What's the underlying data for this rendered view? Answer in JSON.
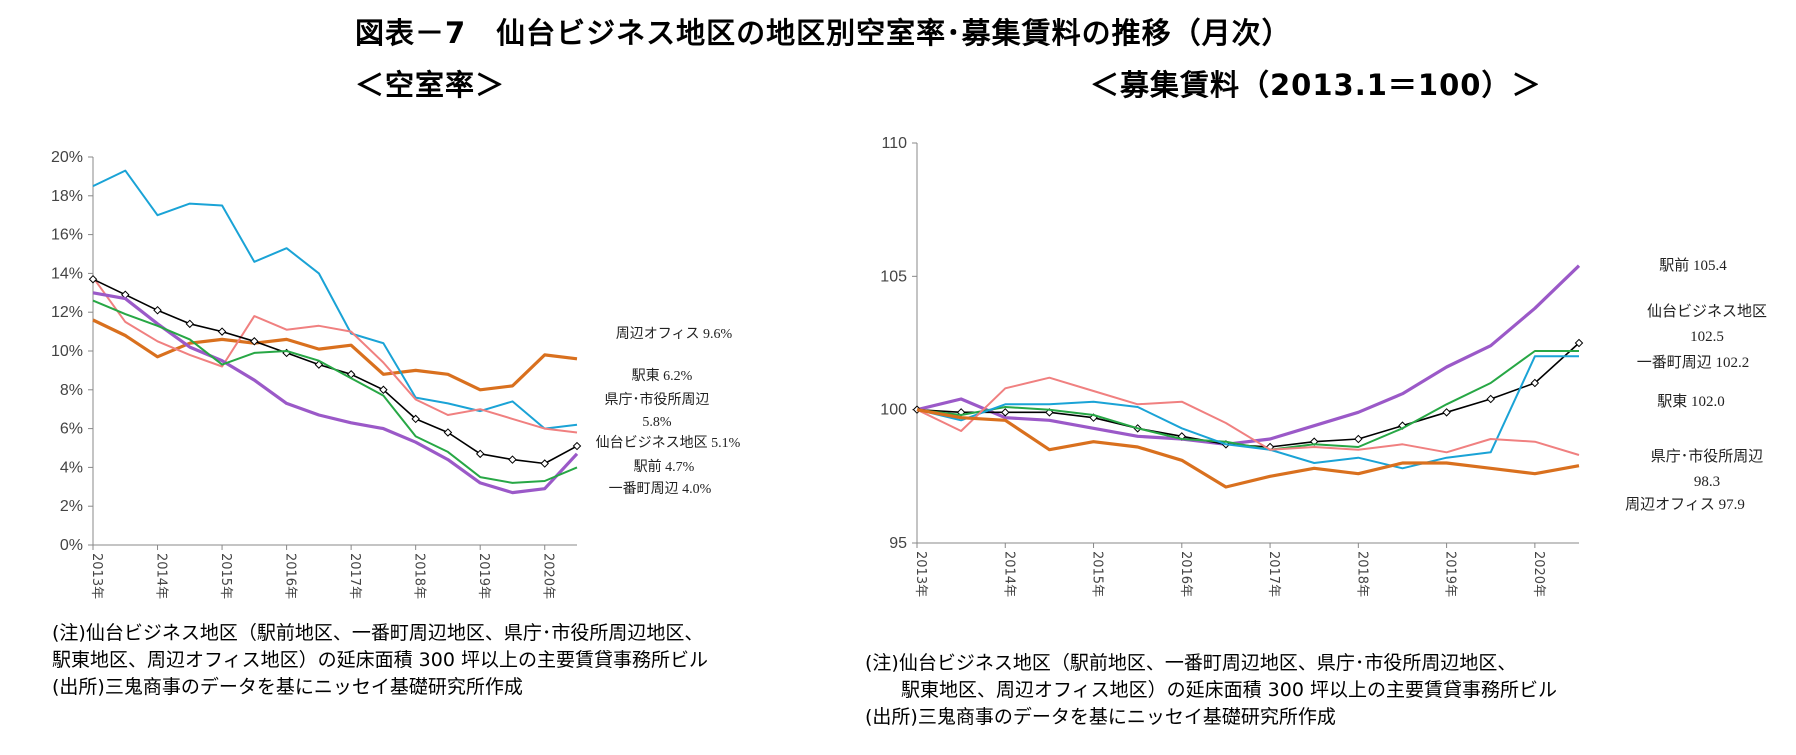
{
  "title": "図表－7　仙台ビジネス地区の地区別空室率･募集賃料の推移（月次）",
  "colors": {
    "sendai": "#000000",
    "ekimae": "#9b59c8",
    "ichibancho": "#27a745",
    "kencho": "#f08080",
    "ekihigashi": "#1aa3d6",
    "shuhen": "#d9701e"
  },
  "chart_data": [
    {
      "type": "line",
      "title": "＜空室率＞",
      "xlabel": "",
      "ylabel": "",
      "x_tick_labels": [
        "2013年",
        "2014年",
        "2015年",
        "2016年",
        "2017年",
        "2018年",
        "2019年",
        "2020年"
      ],
      "y_tick_labels": [
        "0%",
        "2%",
        "4%",
        "6%",
        "8%",
        "10%",
        "12%",
        "14%",
        "16%",
        "18%",
        "20%"
      ],
      "ylim": [
        0,
        20
      ],
      "xlim": [
        2013.0,
        2020.5
      ],
      "x": [
        2013.0,
        2013.5,
        2014.0,
        2014.5,
        2015.0,
        2015.5,
        2016.0,
        2016.5,
        2017.0,
        2017.5,
        2018.0,
        2018.5,
        2019.0,
        2019.5,
        2020.0,
        2020.5
      ],
      "series": [
        {
          "name": "周辺オフィス",
          "color_key": "shuhen",
          "last_label": "9.6%",
          "values": [
            11.6,
            10.8,
            9.7,
            10.4,
            10.6,
            10.4,
            10.6,
            10.1,
            10.3,
            8.8,
            9.0,
            8.8,
            8.0,
            8.2,
            9.8,
            9.6
          ]
        },
        {
          "name": "駅東",
          "color_key": "ekihigashi",
          "last_label": "6.2%",
          "values": [
            18.5,
            19.3,
            17.0,
            17.6,
            17.5,
            14.6,
            15.3,
            14.0,
            10.9,
            10.4,
            7.6,
            7.3,
            6.9,
            7.4,
            6.0,
            6.2
          ]
        },
        {
          "name": "県庁･市役所周辺",
          "color_key": "kencho",
          "last_label": "5.8%",
          "values": [
            13.8,
            11.5,
            10.5,
            9.8,
            9.2,
            11.8,
            11.1,
            11.3,
            11.0,
            9.4,
            7.5,
            6.7,
            7.0,
            6.5,
            6.0,
            5.8
          ]
        },
        {
          "name": "仙台ビジネス地区",
          "color_key": "sendai",
          "last_label": "5.1%",
          "marker": true,
          "values": [
            13.7,
            12.9,
            12.1,
            11.4,
            11.0,
            10.5,
            9.9,
            9.3,
            8.8,
            8.0,
            6.5,
            5.8,
            4.7,
            4.4,
            4.2,
            5.1
          ]
        },
        {
          "name": "駅前",
          "color_key": "ekimae",
          "last_label": "4.7%",
          "values": [
            13.0,
            12.7,
            11.4,
            10.2,
            9.5,
            8.5,
            7.3,
            6.7,
            6.3,
            6.0,
            5.3,
            4.4,
            3.2,
            2.7,
            2.9,
            4.7
          ]
        },
        {
          "name": "一番町周辺",
          "color_key": "ichibancho",
          "last_label": "4.0%",
          "values": [
            12.6,
            11.9,
            11.3,
            10.6,
            9.3,
            9.9,
            10.0,
            9.5,
            8.6,
            7.7,
            5.6,
            4.8,
            3.5,
            3.2,
            3.3,
            4.0
          ]
        }
      ],
      "labels": {
        "shuhen": "周辺オフィス 9.6%",
        "ekihigashi": "駅東 6.2%",
        "kencho_1": "県庁･市役所周辺",
        "kencho_2": "5.8%",
        "sendai": "仙台ビジネス地区 5.1%",
        "ekimae": "駅前 4.7%",
        "ichibancho": "一番町周辺 4.0%"
      }
    },
    {
      "type": "line",
      "title": "＜募集賃料（2013.1＝100）＞",
      "xlabel": "",
      "ylabel": "",
      "x_tick_labels": [
        "2013年",
        "2014年",
        "2015年",
        "2016年",
        "2017年",
        "2018年",
        "2019年",
        "2020年"
      ],
      "y_tick_labels": [
        "95",
        "100",
        "105",
        "110"
      ],
      "ylim": [
        95,
        110
      ],
      "xlim": [
        2013.0,
        2020.5
      ],
      "x": [
        2013.0,
        2013.5,
        2014.0,
        2014.5,
        2015.0,
        2015.5,
        2016.0,
        2016.5,
        2017.0,
        2017.5,
        2018.0,
        2018.5,
        2019.0,
        2019.5,
        2020.0,
        2020.5
      ],
      "series": [
        {
          "name": "駅前",
          "color_key": "ekimae",
          "last_label": "105.4",
          "values": [
            100.0,
            100.4,
            99.7,
            99.6,
            99.3,
            99.0,
            98.9,
            98.7,
            98.9,
            99.4,
            99.9,
            100.6,
            101.6,
            102.4,
            103.8,
            105.4
          ]
        },
        {
          "name": "仙台ビジネス地区",
          "color_key": "sendai",
          "last_label": "102.5",
          "marker": true,
          "values": [
            100.0,
            99.9,
            99.9,
            99.9,
            99.7,
            99.3,
            99.0,
            98.7,
            98.6,
            98.8,
            98.9,
            99.4,
            99.9,
            100.4,
            101.0,
            102.5
          ]
        },
        {
          "name": "一番町周辺",
          "color_key": "ichibancho",
          "last_label": "102.2",
          "values": [
            100.0,
            99.8,
            100.1,
            100.0,
            99.8,
            99.3,
            98.9,
            98.8,
            98.5,
            98.7,
            98.6,
            99.3,
            100.2,
            101.0,
            102.2,
            102.2
          ]
        },
        {
          "name": "駅東",
          "color_key": "ekihigashi",
          "last_label": "102.0",
          "values": [
            100.0,
            99.6,
            100.2,
            100.2,
            100.3,
            100.1,
            99.3,
            98.7,
            98.5,
            98.0,
            98.2,
            97.8,
            98.2,
            98.4,
            102.0,
            102.0
          ]
        },
        {
          "name": "県庁･市役所周辺",
          "color_key": "kencho",
          "last_label": "98.3",
          "values": [
            100.0,
            99.2,
            100.8,
            101.2,
            100.7,
            100.2,
            100.3,
            99.5,
            98.5,
            98.6,
            98.5,
            98.7,
            98.4,
            98.9,
            98.8,
            98.3
          ]
        },
        {
          "name": "周辺オフィス",
          "color_key": "shuhen",
          "last_label": "97.9",
          "values": [
            100.0,
            99.7,
            99.6,
            98.5,
            98.8,
            98.6,
            98.1,
            97.1,
            97.5,
            97.8,
            97.6,
            98.0,
            98.0,
            97.8,
            97.6,
            97.9
          ]
        }
      ],
      "labels": {
        "ekimae": "駅前 105.4",
        "sendai_1": "仙台ビジネス地区",
        "sendai_2": "102.5",
        "ichibancho": "一番町周辺 102.2",
        "ekihigashi": "駅東 102.0",
        "kencho_1": "県庁･市役所周辺",
        "kencho_2": "98.3",
        "shuhen": "周辺オフィス 97.9"
      }
    }
  ],
  "notes_left": [
    "(注)仙台ビジネス地区（駅前地区、一番町周辺地区、県庁･市役所周辺地区、",
    "駅東地区、周辺オフィス地区）の延床面積 300 坪以上の主要賃貸事務所ビル",
    "(出所)三鬼商事のデータを基にニッセイ基礎研究所作成"
  ],
  "notes_right": [
    "(注)仙台ビジネス地区（駅前地区、一番町周辺地区、県庁･市役所周辺地区、",
    "駅東地区、周辺オフィス地区）の延床面積 300 坪以上の主要賃貸事務所ビル",
    "(出所)三鬼商事のデータを基にニッセイ基礎研究所作成"
  ]
}
